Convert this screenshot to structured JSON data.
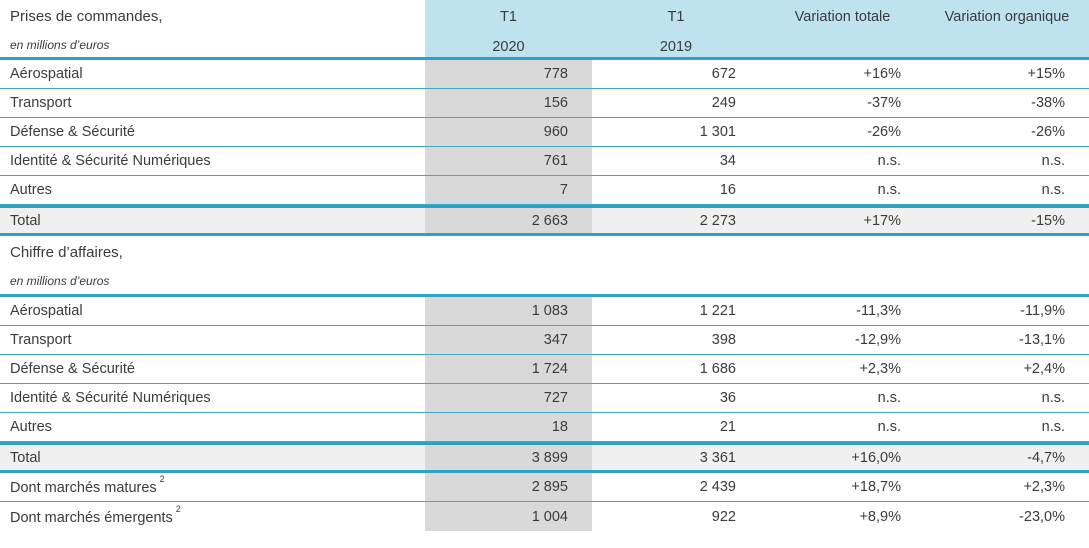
{
  "document_title": "Prises de commandes et chiffre d'affaires",
  "columns": [
    {
      "id": "t1_2020",
      "line1": "T1",
      "line2": "2020"
    },
    {
      "id": "t1_2019",
      "line1": "T1",
      "line2": "2019"
    },
    {
      "id": "var_totale",
      "label": "Variation totale"
    },
    {
      "id": "var_organique",
      "label": "Variation organique"
    }
  ],
  "colors": {
    "header_blue": "#bee3ee",
    "grid_blue": "#2ba3c9",
    "gray_column": "#d9d9d9",
    "total_row_bg": "#f0f0f0",
    "text": "#3b3b3b"
  },
  "sections": [
    {
      "title": "Prises de commandes,",
      "subtitle": "en millions d’euros",
      "rows": [
        {
          "label": "Aérospatial",
          "values": [
            "778",
            "672",
            "+16%",
            "+15%"
          ]
        },
        {
          "label": "Transport",
          "values": [
            "156",
            "249",
            "-37%",
            "-38%"
          ]
        },
        {
          "label": "Défense & Sécurité",
          "values": [
            "960",
            "1 301",
            "-26%",
            "-26%"
          ]
        },
        {
          "label": "Identité & Sécurité Numériques",
          "values": [
            "761",
            "34",
            "n.s.",
            "n.s."
          ]
        },
        {
          "label": "Autres",
          "values": [
            "7",
            "16",
            "n.s.",
            "n.s."
          ]
        },
        {
          "label": "Total",
          "type": "total",
          "values": [
            "2 663",
            "2 273",
            "+17%",
            "-15%"
          ]
        }
      ]
    },
    {
      "title": "Chiffre d’affaires,",
      "subtitle": "en millions d’euros",
      "rows": [
        {
          "label": "Aérospatial",
          "values": [
            "1 083",
            "1 221",
            "-11,3%",
            "-11,9%"
          ]
        },
        {
          "label": "Transport",
          "values": [
            "347",
            "398",
            "-12,9%",
            "-13,1%"
          ]
        },
        {
          "label": "Défense & Sécurité",
          "values": [
            "1 724",
            "1 686",
            "+2,3%",
            "+2,4%"
          ]
        },
        {
          "label": "Identité & Sécurité Numériques",
          "values": [
            "727",
            "36",
            "n.s.",
            "n.s."
          ]
        },
        {
          "label": "Autres",
          "values": [
            "18",
            "21",
            "n.s.",
            "n.s."
          ]
        },
        {
          "label": "Total",
          "type": "total",
          "values": [
            "3 899",
            "3 361",
            "+16,0%",
            "-4,7%"
          ]
        },
        {
          "label": "Dont marchés matures",
          "sup": "2",
          "values": [
            "2 895",
            "2 439",
            "+18,7%",
            "+2,3%"
          ]
        },
        {
          "label": "Dont marchés émergents",
          "sup": "2",
          "values": [
            "1 004",
            "922",
            "+8,9%",
            "-23,0%"
          ]
        }
      ]
    }
  ]
}
